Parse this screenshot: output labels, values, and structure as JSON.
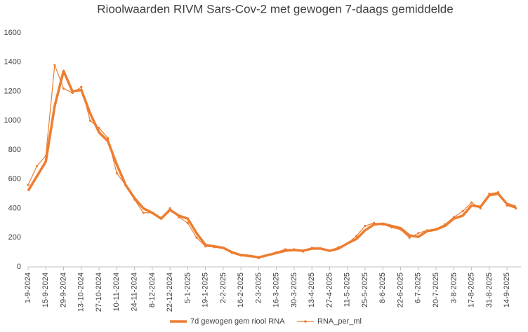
{
  "chart_data": {
    "type": "line",
    "title": "Rioolwaarden RIVM Sars-Cov-2 met gewogen 7-daags gemiddelde",
    "x": [
      "1-9-2024",
      "8-9-2024",
      "15-9-2024",
      "22-9-2024",
      "29-9-2024",
      "6-10-2024",
      "13-10-2024",
      "20-10-2024",
      "27-10-2024",
      "3-11-2024",
      "10-11-2024",
      "17-11-2024",
      "24-11-2024",
      "1-12-2024",
      "8-12-2024",
      "15-12-2024",
      "22-12-2024",
      "29-12-2024",
      "5-1-2025",
      "12-1-2025",
      "19-1-2025",
      "26-1-2025",
      "2-2-2025",
      "9-2-2025",
      "16-2-2025",
      "23-2-2025",
      "2-3-2025",
      "9-3-2025",
      "16-3-2025",
      "23-3-2025",
      "30-3-2025",
      "6-4-2025",
      "13-4-2025",
      "20-4-2025",
      "27-4-2025",
      "4-5-2025",
      "11-5-2025",
      "18-5-2025",
      "25-5-2025",
      "1-6-2025",
      "8-6-2025",
      "15-6-2025",
      "22-6-2025",
      "29-6-2025",
      "6-7-2025",
      "13-7-2025",
      "20-7-2025",
      "27-7-2025",
      "3-8-2025",
      "10-8-2025",
      "17-8-2025",
      "24-8-2025",
      "31-8-2025",
      "7-9-2025",
      "14-9-2025",
      "21-9-2025"
    ],
    "series": [
      {
        "name": "7d gewogen gem riool RNA",
        "color": "#ed7d31",
        "values": [
          520,
          620,
          720,
          1100,
          1340,
          1200,
          1210,
          1050,
          920,
          860,
          700,
          560,
          470,
          400,
          370,
          330,
          390,
          350,
          330,
          230,
          150,
          140,
          130,
          100,
          80,
          75,
          65,
          80,
          95,
          110,
          115,
          110,
          125,
          125,
          110,
          125,
          160,
          190,
          250,
          290,
          295,
          280,
          265,
          215,
          205,
          245,
          255,
          280,
          330,
          350,
          420,
          410,
          490,
          500,
          430,
          410
        ]
      },
      {
        "name": "RNA_per_ml",
        "color": "#ed7d31",
        "values": [
          560,
          690,
          760,
          1380,
          1220,
          1190,
          1230,
          1000,
          950,
          880,
          640,
          560,
          460,
          370,
          370,
          330,
          400,
          340,
          300,
          200,
          140,
          135,
          130,
          95,
          78,
          72,
          60,
          80,
          100,
          120,
          120,
          105,
          130,
          125,
          110,
          135,
          160,
          210,
          280,
          300,
          290,
          270,
          255,
          200,
          230,
          250,
          260,
          290,
          340,
          380,
          440,
          400,
          500,
          510,
          420,
          400
        ]
      }
    ],
    "xlim": [
      "1-9-2024",
      "25-9-2025"
    ],
    "xticks": [
      "1-9-2024",
      "15-9-2024",
      "29-9-2024",
      "13-10-2024",
      "27-10-2024",
      "10-11-2024",
      "24-11-2024",
      "8-12-2024",
      "22-12-2024",
      "5-1-2025",
      "19-1-2025",
      "2-2-2025",
      "16-2-2025",
      "2-3-2025",
      "16-3-2025",
      "30-3-2025",
      "13-4-2025",
      "27-4-2025",
      "11-5-2025",
      "25-5-2025",
      "8-6-2025",
      "22-6-2025",
      "6-7-2025",
      "20-7-2025",
      "3-8-2025",
      "17-8-2025",
      "31-8-2025",
      "14-9-2025"
    ],
    "ylim": [
      0,
      1600
    ],
    "yticks": [
      0,
      200,
      400,
      600,
      800,
      1000,
      1200,
      1400,
      1600
    ],
    "grid": false
  }
}
